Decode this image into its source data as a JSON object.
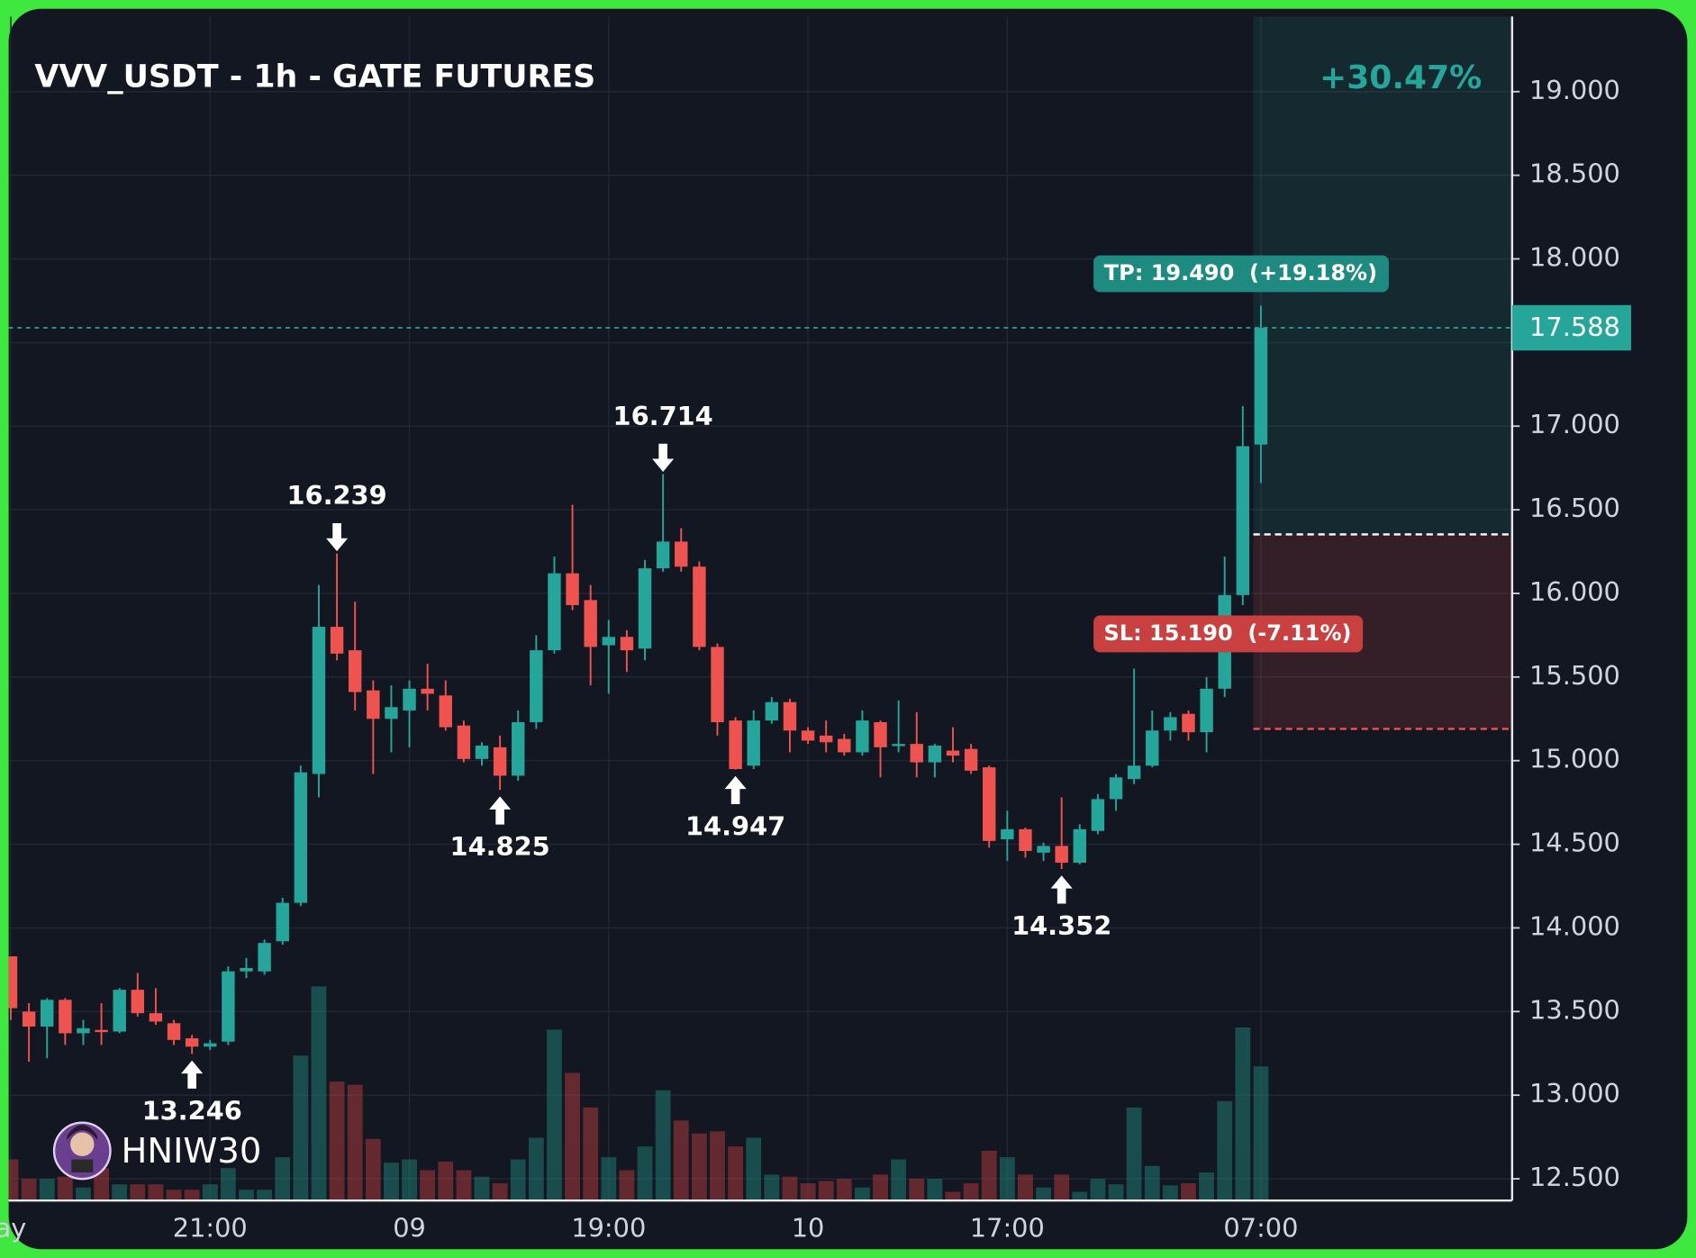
{
  "chart_data": {
    "type": "candlestick",
    "title": "VVV_USDT - 1h - GATE FUTURES",
    "up_color": "#26a69a",
    "down_color": "#ef5350",
    "categories": [
      "ay",
      null,
      null,
      null,
      null,
      null,
      null,
      null,
      null,
      null,
      null,
      "21:00",
      null,
      null,
      null,
      null,
      null,
      null,
      null,
      null,
      null,
      null,
      "09",
      null,
      null,
      null,
      null,
      null,
      null,
      null,
      null,
      null,
      null,
      "19:00",
      null,
      null,
      null,
      null,
      null,
      null,
      null,
      null,
      null,
      null,
      "10",
      null,
      null,
      null,
      null,
      null,
      null,
      null,
      null,
      null,
      null,
      "17:00",
      null,
      null,
      null,
      null,
      null,
      null,
      null,
      null,
      null,
      null,
      null,
      null,
      null,
      "07:00"
    ],
    "open": [
      13.83,
      13.5,
      13.41,
      13.57,
      13.37,
      13.39,
      13.38,
      13.63,
      13.49,
      13.43,
      13.34,
      13.29,
      13.32,
      13.74,
      13.74,
      13.92,
      14.15,
      14.92,
      15.8,
      15.66,
      15.42,
      15.25,
      15.3,
      15.43,
      15.39,
      15.21,
      15.01,
      15.08,
      14.91,
      15.23,
      15.66,
      16.12,
      15.96,
      15.69,
      15.74,
      15.67,
      16.15,
      16.31,
      16.16,
      15.68,
      15.24,
      14.97,
      15.24,
      15.35,
      15.18,
      15.15,
      15.13,
      15.05,
      15.23,
      15.09,
      15.1,
      14.99,
      15.06,
      15.07,
      14.96,
      14.53,
      14.59,
      14.45,
      14.49,
      14.39,
      14.58,
      14.77,
      14.89,
      14.97,
      15.18,
      15.28,
      15.17,
      15.43,
      15.99,
      16.89
    ],
    "high": [
      13.83,
      13.55,
      13.58,
      13.58,
      13.45,
      13.55,
      13.64,
      13.73,
      13.64,
      13.45,
      13.36,
      13.33,
      13.77,
      13.82,
      13.93,
      14.18,
      14.97,
      16.05,
      16.239,
      15.95,
      15.48,
      15.45,
      15.48,
      15.58,
      15.48,
      15.24,
      15.11,
      15.15,
      15.3,
      15.75,
      16.22,
      16.53,
      16.05,
      15.84,
      15.78,
      16.2,
      16.714,
      16.39,
      16.19,
      15.7,
      15.26,
      15.3,
      15.38,
      15.37,
      15.2,
      15.24,
      15.16,
      15.3,
      15.24,
      15.36,
      15.29,
      15.1,
      15.2,
      15.1,
      14.97,
      14.7,
      14.6,
      14.51,
      14.78,
      14.62,
      14.8,
      14.92,
      15.55,
      15.3,
      15.29,
      15.3,
      15.5,
      16.22,
      17.12,
      17.72
    ],
    "low": [
      13.45,
      13.2,
      13.22,
      13.3,
      13.3,
      13.3,
      13.37,
      13.47,
      13.42,
      13.3,
      13.246,
      13.27,
      13.3,
      13.7,
      13.72,
      13.9,
      14.13,
      14.78,
      15.6,
      15.3,
      14.92,
      15.05,
      15.08,
      15.3,
      15.18,
      14.99,
      14.97,
      14.825,
      14.88,
      15.19,
      15.64,
      15.9,
      15.45,
      15.4,
      15.53,
      15.6,
      16.13,
      16.13,
      15.66,
      15.15,
      14.947,
      14.95,
      15.22,
      15.05,
      15.1,
      15.05,
      15.03,
      15.03,
      14.9,
      15.05,
      14.9,
      14.9,
      14.99,
      14.92,
      14.48,
      14.4,
      14.42,
      14.4,
      14.352,
      14.38,
      14.56,
      14.7,
      14.86,
      14.96,
      15.12,
      15.12,
      15.05,
      15.38,
      15.93,
      16.66
    ],
    "close": [
      13.52,
      13.41,
      13.57,
      13.37,
      13.4,
      13.38,
      13.63,
      13.49,
      13.44,
      13.33,
      13.29,
      13.31,
      13.74,
      13.76,
      13.91,
      14.15,
      14.93,
      15.8,
      15.64,
      15.41,
      15.25,
      15.32,
      15.43,
      15.4,
      15.2,
      15.01,
      15.09,
      14.91,
      15.23,
      15.66,
      16.12,
      15.93,
      15.68,
      15.74,
      15.66,
      16.15,
      16.31,
      16.16,
      15.68,
      15.23,
      14.95,
      15.24,
      15.35,
      15.18,
      15.12,
      15.11,
      15.05,
      15.24,
      15.08,
      15.1,
      14.99,
      15.09,
      15.03,
      14.94,
      14.52,
      14.59,
      14.46,
      14.49,
      14.39,
      14.59,
      14.77,
      14.9,
      14.97,
      15.18,
      15.26,
      15.17,
      15.43,
      15.99,
      16.88,
      17.588
    ],
    "volume": [
      38,
      20,
      20,
      22,
      12,
      30,
      15,
      15,
      15,
      10,
      10,
      15,
      30,
      10,
      10,
      40,
      134,
      198,
      110,
      107,
      57,
      35,
      38,
      28,
      36,
      28,
      22,
      16,
      38,
      58,
      158,
      118,
      86,
      40,
      28,
      50,
      102,
      74,
      62,
      64,
      50,
      58,
      24,
      22,
      16,
      18,
      20,
      12,
      24,
      38,
      20,
      20,
      8,
      16,
      46,
      40,
      24,
      12,
      24,
      8,
      20,
      15,
      86,
      32,
      14,
      16,
      26,
      92,
      160,
      124
    ],
    "ylim": [
      12.37,
      19.45
    ],
    "yticks": [
      {
        "value": 12.5,
        "label": "12.500"
      },
      {
        "value": 13,
        "label": "13.000"
      },
      {
        "value": 13.5,
        "label": "13.500"
      },
      {
        "value": 14,
        "label": "14.000"
      },
      {
        "value": 14.5,
        "label": "14.500"
      },
      {
        "value": 15,
        "label": "15.000"
      },
      {
        "value": 15.5,
        "label": "15.500"
      },
      {
        "value": 16,
        "label": "16.000"
      },
      {
        "value": 16.5,
        "label": "16.500"
      },
      {
        "value": 17,
        "label": "17.000"
      },
      {
        "value": 17.5,
        "label": "17.500"
      },
      {
        "value": 18,
        "label": "18.000"
      },
      {
        "value": 18.5,
        "label": "18.500"
      },
      {
        "value": 19,
        "label": "19.000"
      }
    ],
    "grid": true,
    "annotations": [
      {
        "value": 13.246,
        "candle": 10
      },
      {
        "value": 16.239,
        "candle": 18
      },
      {
        "value": 14.825,
        "candle": 27
      },
      {
        "value": 16.714,
        "candle": 36
      },
      {
        "value": 14.947,
        "candle": 40
      },
      {
        "value": 14.352,
        "candle": 58
      }
    ],
    "position": {
      "start_candle": 69,
      "entry": 16.353,
      "take_profit": 19.49,
      "stop_loss": 15.19,
      "tp_label": "TP: 19.490  (+19.18%)",
      "sl_label": "SL: 15.190  (-7.11%)",
      "result": "+30.47%"
    },
    "watermark": "HNIW30"
  }
}
